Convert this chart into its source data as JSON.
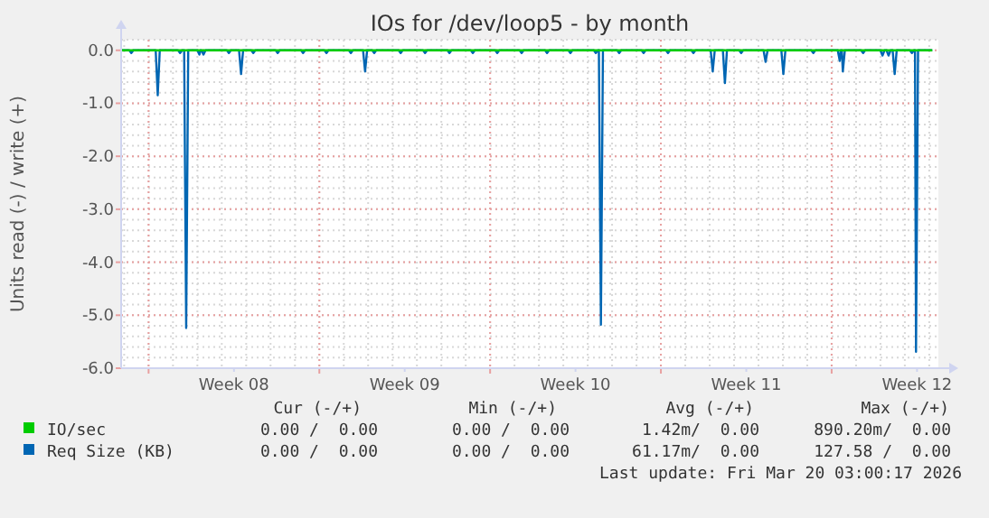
{
  "chart_data": {
    "type": "line",
    "title": "IOs for /dev/loop5 - by month",
    "ylabel": "Units read (-) / write (+)",
    "xlim": [
      "2026-02-14T21:00",
      "2026-03-20T09:00"
    ],
    "xticks": [
      {
        "value": "2026-02-16T00:00",
        "label": null
      },
      {
        "value": "2026-02-19T12:00",
        "label": "Week 08"
      },
      {
        "value": "2026-02-23T00:00",
        "label": null
      },
      {
        "value": "2026-02-26T12:00",
        "label": "Week 09"
      },
      {
        "value": "2026-03-02T00:00",
        "label": null
      },
      {
        "value": "2026-03-05T12:00",
        "label": "Week 10"
      },
      {
        "value": "2026-03-09T00:00",
        "label": null
      },
      {
        "value": "2026-03-12T12:00",
        "label": "Week 11"
      },
      {
        "value": "2026-03-16T00:00",
        "label": null
      },
      {
        "value": "2026-03-19T12:00",
        "label": "Week 12"
      }
    ],
    "ylim": [
      -6,
      0.2
    ],
    "yticks": [
      {
        "value": 0,
        "label": "0.0"
      },
      {
        "value": -1,
        "label": "-1.0"
      },
      {
        "value": -2,
        "label": "-2.0"
      },
      {
        "value": -3,
        "label": "-3.0"
      },
      {
        "value": -4,
        "label": "-4.0"
      },
      {
        "value": -5,
        "label": "-5.0"
      },
      {
        "value": -6,
        "label": "-6.0"
      }
    ],
    "grid": true,
    "legend": "bottom",
    "line_style": "solid",
    "series": [
      {
        "name": "Req Size (KB)",
        "color": "#0066b3",
        "x": [
          "2026-02-14T21:00",
          "2026-02-15T05:00",
          "2026-02-15T07:00",
          "2026-02-15T09:00",
          "2026-02-16T07:00",
          "2026-02-16T09:00",
          "2026-02-16T11:00",
          "2026-02-17T05:00",
          "2026-02-17T07:00",
          "2026-02-17T09:00",
          "2026-02-17T11:00",
          "2026-02-17T13:00",
          "2026-02-17T15:00",
          "2026-02-18T00:00",
          "2026-02-18T02:00",
          "2026-02-18T03:00",
          "2026-02-18T04:00",
          "2026-02-18T06:00",
          "2026-02-18T08:00",
          "2026-02-19T05:00",
          "2026-02-19T07:00",
          "2026-02-19T09:00",
          "2026-02-19T17:00",
          "2026-02-19T19:00",
          "2026-02-19T21:00",
          "2026-02-20T05:00",
          "2026-02-20T07:00",
          "2026-02-20T09:00",
          "2026-02-21T05:00",
          "2026-02-21T07:00",
          "2026-02-21T09:00",
          "2026-02-22T06:00",
          "2026-02-22T08:00",
          "2026-02-22T10:00",
          "2026-02-23T05:00",
          "2026-02-23T07:00",
          "2026-02-23T09:00",
          "2026-02-24T05:00",
          "2026-02-24T07:00",
          "2026-02-24T09:00",
          "2026-02-24T19:00",
          "2026-02-24T21:00",
          "2026-02-24T23:00",
          "2026-02-25T04:00",
          "2026-02-25T06:00",
          "2026-02-25T08:00",
          "2026-02-26T06:00",
          "2026-02-26T08:00",
          "2026-02-26T10:00",
          "2026-02-27T06:00",
          "2026-02-27T08:00",
          "2026-02-27T10:00",
          "2026-02-28T06:00",
          "2026-02-28T08:00",
          "2026-02-28T10:00",
          "2026-03-01T05:00",
          "2026-03-01T07:00",
          "2026-03-01T09:00",
          "2026-03-02T05:00",
          "2026-03-02T07:00",
          "2026-03-02T09:00",
          "2026-03-03T05:00",
          "2026-03-03T07:00",
          "2026-03-03T09:00",
          "2026-03-04T06:00",
          "2026-03-04T08:00",
          "2026-03-04T10:00",
          "2026-03-05T05:00",
          "2026-03-05T07:00",
          "2026-03-05T09:00",
          "2026-03-06T06:00",
          "2026-03-06T08:00",
          "2026-03-06T10:00",
          "2026-03-06T11:00",
          "2026-03-06T13:00",
          "2026-03-06T15:00",
          "2026-03-07T05:00",
          "2026-03-07T07:00",
          "2026-03-07T09:00",
          "2026-03-08T05:00",
          "2026-03-08T07:00",
          "2026-03-08T09:00",
          "2026-03-09T05:00",
          "2026-03-09T07:00",
          "2026-03-09T09:00",
          "2026-03-10T06:00",
          "2026-03-10T08:00",
          "2026-03-10T10:00",
          "2026-03-11T01:00",
          "2026-03-11T03:00",
          "2026-03-11T05:00",
          "2026-03-11T13:00",
          "2026-03-11T15:00",
          "2026-03-11T17:00",
          "2026-03-12T05:00",
          "2026-03-12T07:00",
          "2026-03-12T09:00",
          "2026-03-13T05:00",
          "2026-03-13T07:00",
          "2026-03-13T09:00",
          "2026-03-13T22:30",
          "2026-03-14T00:30",
          "2026-03-14T02:30",
          "2026-03-15T04:00",
          "2026-03-15T06:00",
          "2026-03-15T08:00",
          "2026-03-16T06:00",
          "2026-03-16T08:00",
          "2026-03-16T09:00",
          "2026-03-16T10:00",
          "2026-03-16T11:00",
          "2026-03-16T13:00",
          "2026-03-17T05:00",
          "2026-03-17T07:00",
          "2026-03-17T09:00",
          "2026-03-18T00:00",
          "2026-03-18T02:00",
          "2026-03-18T04:00",
          "2026-03-18T06:00",
          "2026-03-18T08:00",
          "2026-03-18T10:00",
          "2026-03-18T12:00",
          "2026-03-18T14:00",
          "2026-03-18T16:00",
          "2026-03-19T05:00",
          "2026-03-19T07:00",
          "2026-03-19T09:00",
          "2026-03-19T10:00",
          "2026-03-19T11:00",
          "2026-03-19T13:00",
          "2026-03-20T03:00"
        ],
        "values": [
          0,
          0,
          -0.05,
          0,
          0,
          -0.85,
          0,
          0,
          -0.05,
          0,
          0,
          -5.24,
          0,
          0,
          -0.08,
          0,
          0,
          -0.08,
          0,
          0,
          -0.05,
          0,
          0,
          -0.45,
          0,
          0,
          -0.05,
          0,
          0,
          -0.05,
          0,
          0,
          -0.05,
          0,
          0,
          -0.05,
          0,
          0,
          -0.05,
          0,
          0,
          -0.4,
          0,
          0,
          -0.05,
          0,
          0,
          -0.05,
          0,
          0,
          -0.05,
          0,
          0,
          -0.05,
          0,
          0,
          -0.05,
          0,
          0,
          -0.05,
          0,
          0,
          -0.05,
          0,
          0,
          -0.05,
          0,
          0,
          -0.05,
          0,
          0,
          -0.05,
          0,
          0,
          -5.18,
          0,
          0,
          -0.05,
          0,
          0,
          -0.05,
          0,
          0,
          -0.05,
          0,
          0,
          -0.05,
          0,
          0,
          -0.4,
          0,
          0,
          -0.62,
          0,
          0,
          -0.05,
          0,
          0,
          -0.22,
          0,
          0,
          -0.45,
          0,
          0,
          -0.05,
          0,
          0,
          -0.2,
          0,
          0,
          -0.4,
          0,
          0,
          -0.05,
          0,
          0,
          -0.1,
          0,
          0,
          -0.1,
          0,
          0,
          -0.45,
          0,
          0,
          -0.05,
          0,
          0,
          -5.69,
          0,
          0
        ]
      },
      {
        "name": "IO/sec",
        "color": "#00cc00",
        "x": [
          "2026-02-14T21:00",
          "2026-03-20T03:00"
        ],
        "values": [
          0,
          0
        ]
      }
    ],
    "annotations": [
      "Cur (-/+)",
      "Min (-/+)",
      "Avg (-/+)",
      "Max (-/+)",
      "0.00 /  0.00",
      "0.00 /  0.00",
      "1.42m/  0.00",
      "890.20m/  0.00",
      "0.00 /  0.00",
      "0.00 /  0.00",
      "61.17m/  0.00",
      "127.58 /  0.00",
      "Last update: Fri Mar 20 03:00:17 2026"
    ]
  }
}
